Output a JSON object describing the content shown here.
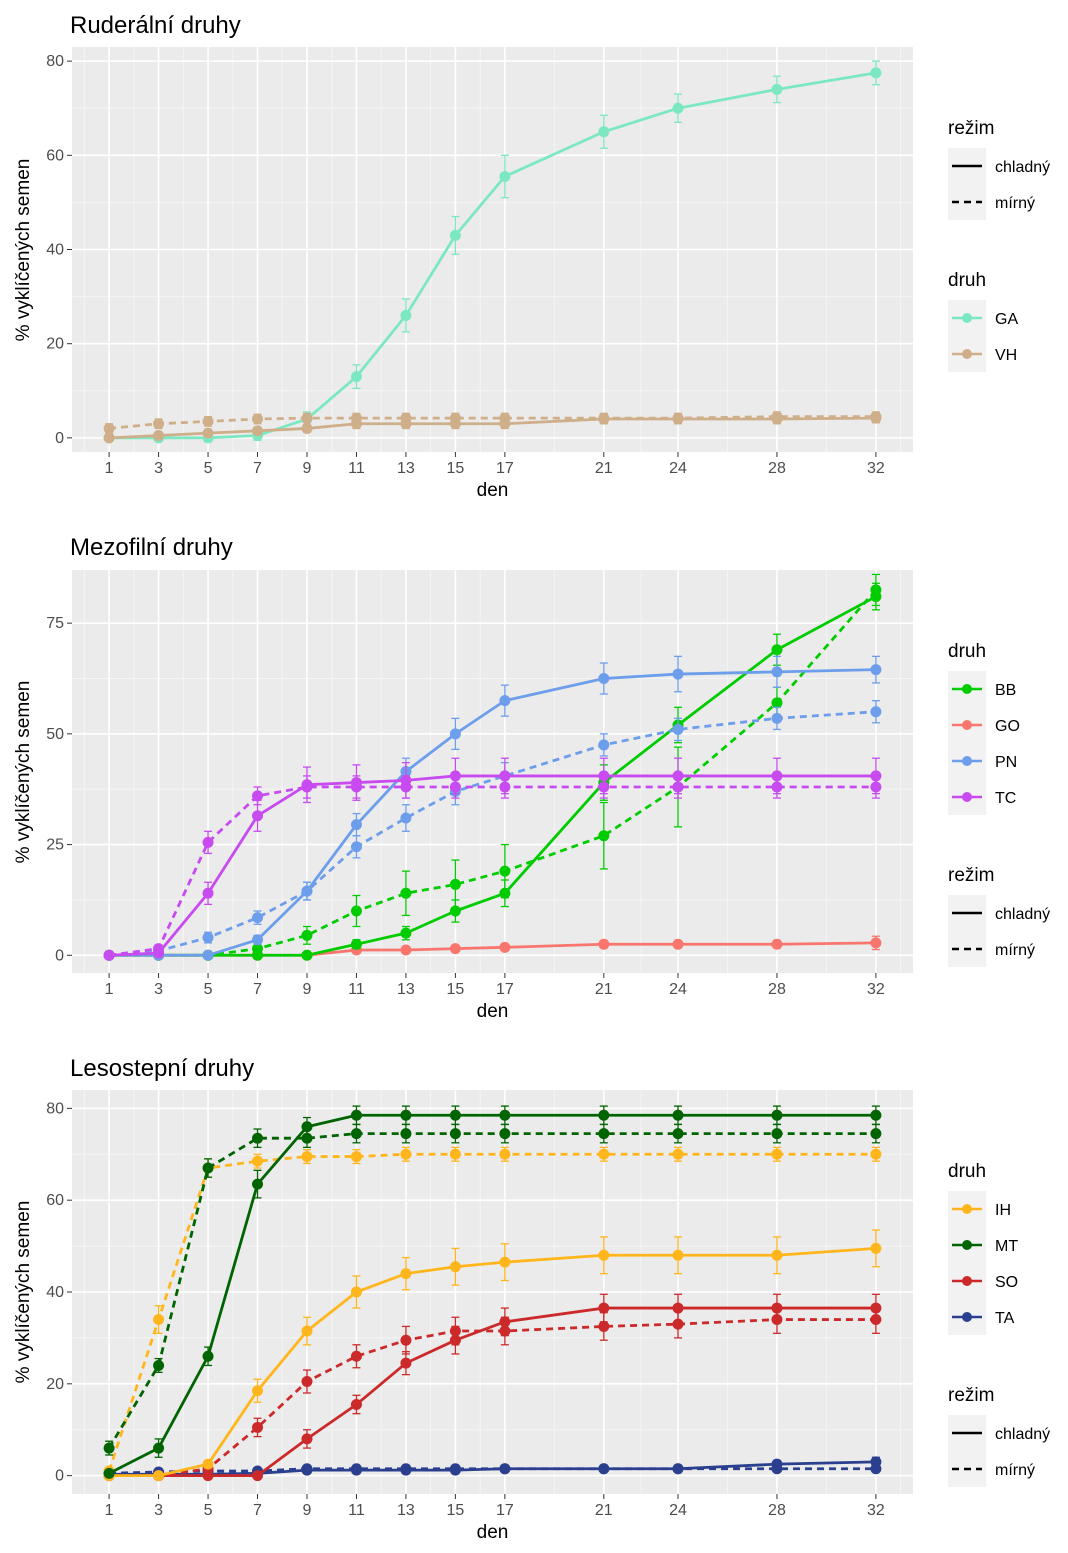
{
  "chart_data": [
    {
      "type": "line",
      "title": "Ruderální druhy",
      "xlabel": "den",
      "ylabel": "% vyklíčených semen",
      "x": [
        1,
        3,
        5,
        7,
        9,
        11,
        13,
        15,
        17,
        21,
        24,
        28,
        32
      ],
      "x_ticks": [
        1,
        3,
        5,
        7,
        9,
        11,
        13,
        15,
        17,
        21,
        24,
        28,
        32
      ],
      "xlim": [
        -0.5,
        33.5
      ],
      "y_ticks": [
        0,
        20,
        40,
        60,
        80
      ],
      "ylim": [
        -3,
        83
      ],
      "grid": true,
      "legend_placement": "right",
      "legend_order": [
        "rezim",
        "druh"
      ],
      "legend_rezim_title": "režim",
      "legend_druh_title": "druh",
      "regime_labels": {
        "solid": "chladný",
        "dashed": "mírný"
      },
      "species": [
        {
          "name": "GA",
          "color": "#7ce8c2"
        },
        {
          "name": "VH",
          "color": "#cfae8a"
        }
      ],
      "series": [
        {
          "species": "GA",
          "regime": "solid",
          "values": [
            0,
            0,
            0,
            0.5,
            4,
            13,
            26,
            43,
            55.5,
            65,
            70,
            74,
            77.5
          ],
          "errors": [
            0.5,
            0.8,
            0.8,
            1,
            1.5,
            2.5,
            3.5,
            4,
            4.5,
            3.5,
            3,
            2.8,
            2.5
          ]
        },
        {
          "species": "VH",
          "regime": "dashed",
          "values": [
            2,
            3,
            3.5,
            4,
            4.2,
            4.2,
            4.2,
            4.2,
            4.2,
            4.2,
            4.2,
            4.5,
            4.5
          ],
          "errors": [
            1,
            1,
            1,
            1,
            1,
            1,
            1,
            1,
            1,
            1,
            1,
            1,
            1
          ]
        },
        {
          "species": "VH",
          "regime": "solid",
          "values": [
            0,
            0.5,
            1,
            1.5,
            2,
            3,
            3,
            3,
            3,
            4,
            4,
            4,
            4.2
          ],
          "errors": [
            0.5,
            0.5,
            0.7,
            0.7,
            0.8,
            1,
            1,
            1,
            1,
            1,
            1,
            1,
            1
          ]
        }
      ]
    },
    {
      "type": "line",
      "title": "Mezofilní druhy",
      "xlabel": "den",
      "ylabel": "% vyklíčených semen",
      "x": [
        1,
        3,
        5,
        7,
        9,
        11,
        13,
        15,
        17,
        21,
        24,
        28,
        32
      ],
      "x_ticks": [
        1,
        3,
        5,
        7,
        9,
        11,
        13,
        15,
        17,
        21,
        24,
        28,
        32
      ],
      "xlim": [
        -0.5,
        33.5
      ],
      "y_ticks": [
        0,
        25,
        50,
        75
      ],
      "ylim": [
        -4,
        87
      ],
      "grid": true,
      "legend_placement": "right",
      "legend_order": [
        "druh",
        "rezim"
      ],
      "legend_rezim_title": "režim",
      "legend_druh_title": "druh",
      "regime_labels": {
        "solid": "chladný",
        "dashed": "mírný"
      },
      "species": [
        {
          "name": "BB",
          "color": "#00cc00"
        },
        {
          "name": "GO",
          "color": "#f8766d"
        },
        {
          "name": "PN",
          "color": "#6d9eeb"
        },
        {
          "name": "TC",
          "color": "#c84bf0"
        }
      ],
      "series": [
        {
          "species": "GO",
          "regime": "solid",
          "values": [
            0,
            0,
            0,
            0,
            0,
            1.2,
            1.2,
            1.5,
            1.8,
            2.5,
            2.5,
            2.5,
            2.8
          ],
          "errors": [
            0.3,
            0.3,
            0.3,
            0.3,
            0.3,
            0.5,
            0.5,
            0.6,
            0.6,
            0.8,
            0.8,
            0.8,
            1.5
          ]
        },
        {
          "species": "BB",
          "regime": "solid",
          "values": [
            0,
            0,
            0,
            0,
            0,
            2.5,
            5,
            10,
            14,
            39,
            52,
            69,
            81
          ],
          "errors": [
            0.3,
            0.3,
            0.3,
            0.3,
            0.3,
            1,
            1.5,
            2.5,
            3,
            4,
            4,
            3.5,
            3
          ]
        },
        {
          "species": "BB",
          "regime": "dashed",
          "values": [
            0,
            0,
            0,
            1.5,
            4.5,
            10,
            14,
            16,
            19,
            27,
            38,
            57,
            82.5
          ],
          "errors": [
            0.3,
            0.3,
            0.3,
            0.8,
            2,
            3.5,
            5,
            5.5,
            6,
            7.5,
            9,
            3.5,
            3.5
          ]
        },
        {
          "species": "PN",
          "regime": "solid",
          "values": [
            0,
            0,
            0,
            3.5,
            14.5,
            29.5,
            41.5,
            50,
            57.5,
            62.5,
            63.5,
            64,
            64.5
          ],
          "errors": [
            0.3,
            0.3,
            0.3,
            1,
            2,
            2.5,
            3,
            3.5,
            3.5,
            3.5,
            4,
            3.5,
            3
          ]
        },
        {
          "species": "PN",
          "regime": "dashed",
          "values": [
            0,
            1,
            4,
            8.5,
            14.5,
            24.5,
            31,
            37,
            40.5,
            47.5,
            51,
            53.5,
            55
          ],
          "errors": [
            0.3,
            0.5,
            1.2,
            1.5,
            2,
            2.5,
            3,
            3,
            3,
            2.5,
            2.5,
            2.5,
            2.5
          ]
        },
        {
          "species": "TC",
          "regime": "solid",
          "values": [
            0,
            0.5,
            14,
            31.5,
            38.5,
            39,
            39.5,
            40.5,
            40.5,
            40.5,
            40.5,
            40.5,
            40.5
          ],
          "errors": [
            0.3,
            0.5,
            2.5,
            3.5,
            4,
            4,
            4,
            4,
            4,
            4,
            4,
            4,
            4
          ]
        },
        {
          "species": "TC",
          "regime": "dashed",
          "values": [
            0,
            1.5,
            25.5,
            36,
            38,
            38,
            38,
            38,
            38,
            38,
            38,
            38,
            38
          ],
          "errors": [
            0.3,
            0.8,
            2.5,
            2,
            2.5,
            2.5,
            2.5,
            2.5,
            2.5,
            2.5,
            2.5,
            2.5,
            2.5
          ]
        }
      ]
    },
    {
      "type": "line",
      "title": "Lesostepní druhy",
      "xlabel": "den",
      "ylabel": "% vyklíčených semen",
      "x": [
        1,
        3,
        5,
        7,
        9,
        11,
        13,
        15,
        17,
        21,
        24,
        28,
        32
      ],
      "x_ticks": [
        1,
        3,
        5,
        7,
        9,
        11,
        13,
        15,
        17,
        21,
        24,
        28,
        32
      ],
      "xlim": [
        -0.5,
        33.5
      ],
      "y_ticks": [
        0,
        20,
        40,
        60,
        80
      ],
      "ylim": [
        -4,
        84
      ],
      "grid": true,
      "legend_placement": "right",
      "legend_order": [
        "druh",
        "rezim"
      ],
      "legend_rezim_title": "režim",
      "legend_druh_title": "druh",
      "regime_labels": {
        "solid": "chladný",
        "dashed": "mírný"
      },
      "species": [
        {
          "name": "IH",
          "color": "#ffb61c"
        },
        {
          "name": "MT",
          "color": "#006400"
        },
        {
          "name": "SO",
          "color": "#cc2a2a"
        },
        {
          "name": "TA",
          "color": "#2b3f8f"
        }
      ],
      "series": [
        {
          "species": "TA",
          "regime": "dashed",
          "values": [
            0.5,
            0.8,
            1,
            1,
            1.5,
            1.5,
            1.5,
            1.5,
            1.5,
            1.5,
            1.5,
            1.5,
            1.5
          ],
          "errors": [
            0.4,
            0.4,
            0.4,
            0.4,
            0.5,
            0.5,
            0.5,
            0.5,
            0.5,
            0.5,
            0.5,
            0.5,
            0.5
          ]
        },
        {
          "species": "TA",
          "regime": "solid",
          "values": [
            0.3,
            0.3,
            0.3,
            0.5,
            1.2,
            1.2,
            1.2,
            1.2,
            1.5,
            1.5,
            1.5,
            2.5,
            3
          ],
          "errors": [
            0.3,
            0.3,
            0.3,
            0.4,
            0.5,
            0.5,
            0.5,
            0.5,
            0.5,
            0.5,
            0.5,
            0.8,
            1
          ]
        },
        {
          "species": "SO",
          "regime": "solid",
          "values": [
            0,
            0,
            0,
            0,
            8,
            15.5,
            24.5,
            29.5,
            33.5,
            36.5,
            36.5,
            36.5,
            36.5
          ],
          "errors": [
            0.3,
            0.3,
            0.3,
            0.3,
            2,
            2,
            2.5,
            3,
            3,
            3,
            3,
            3,
            3
          ]
        },
        {
          "species": "SO",
          "regime": "dashed",
          "values": [
            0,
            0,
            1.5,
            10.5,
            20.5,
            26,
            29.5,
            31.5,
            31.5,
            32.5,
            33,
            34,
            34
          ],
          "errors": [
            0.3,
            0.3,
            0.8,
            2,
            2.5,
            2.5,
            3,
            3,
            3,
            3,
            3,
            3,
            3
          ]
        },
        {
          "species": "IH",
          "regime": "solid",
          "values": [
            0,
            0,
            2.5,
            18.5,
            31.5,
            40,
            44,
            45.5,
            46.5,
            48,
            48,
            48,
            49.5
          ],
          "errors": [
            0.3,
            0.3,
            0.8,
            2.5,
            3,
            3.5,
            3.5,
            4,
            4,
            4,
            4,
            4,
            4
          ]
        },
        {
          "species": "IH",
          "regime": "dashed",
          "values": [
            1,
            34,
            67,
            68.5,
            69.5,
            69.5,
            70,
            70,
            70,
            70,
            70,
            70,
            70
          ],
          "errors": [
            0.5,
            3,
            2,
            1.5,
            1.5,
            1.5,
            1.5,
            1.5,
            1.5,
            1.5,
            1.5,
            1.5,
            1.5
          ]
        },
        {
          "species": "MT",
          "regime": "solid",
          "values": [
            0.5,
            6,
            26,
            63.5,
            76,
            78.5,
            78.5,
            78.5,
            78.5,
            78.5,
            78.5,
            78.5,
            78.5
          ],
          "errors": [
            0.5,
            2,
            2,
            3,
            2,
            2,
            2,
            2,
            2,
            2,
            2,
            2,
            2
          ]
        },
        {
          "species": "MT",
          "regime": "dashed",
          "values": [
            6,
            24,
            67,
            73.5,
            73.5,
            74.5,
            74.5,
            74.5,
            74.5,
            74.5,
            74.5,
            74.5,
            74.5
          ],
          "errors": [
            1.5,
            1.5,
            2,
            2,
            2,
            2,
            2,
            2,
            2,
            2,
            2,
            2,
            2
          ]
        }
      ]
    }
  ]
}
